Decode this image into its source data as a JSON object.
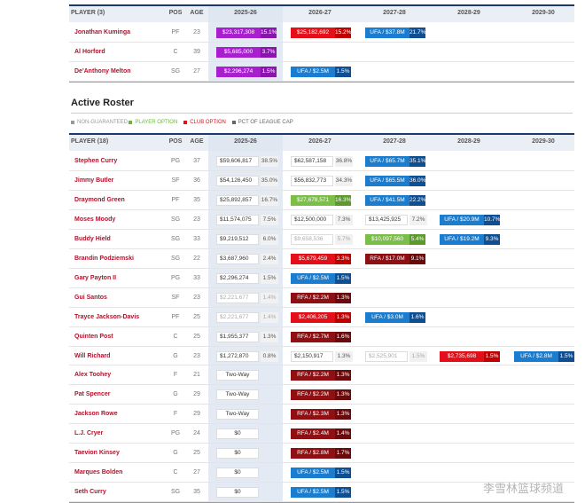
{
  "sections": [
    {
      "headers": [
        "PLAYER (3)",
        "POS",
        "AGE",
        "2025-26",
        "2026-27",
        "2027-28",
        "2028-29",
        "2029-30"
      ],
      "rows": [
        {
          "name": "Jonathan Kuminga",
          "pos": "PF",
          "age": "23",
          "cells": [
            {
              "text": "$23,317,308",
              "pct": "15.1%",
              "kind": "dead"
            },
            {
              "text": "$25,182,692",
              "pct": "15.2%",
              "kind": "club-option"
            },
            {
              "text": "UFA / $37.8M",
              "pct": "21.7%",
              "kind": "ufa"
            },
            null,
            null
          ]
        },
        {
          "name": "Al Horford",
          "pos": "C",
          "age": "39",
          "cells": [
            {
              "text": "$5,685,000",
              "pct": "3.7%",
              "kind": "dead"
            },
            null,
            null,
            null,
            null
          ]
        },
        {
          "name": "De'Anthony Melton",
          "pos": "SG",
          "age": "27",
          "cells": [
            {
              "text": "$2,296,274",
              "pct": "1.5%",
              "kind": "dead"
            },
            {
              "text": "UFA / $2.5M",
              "pct": "1.5%",
              "kind": "ufa"
            },
            null,
            null,
            null
          ]
        }
      ]
    },
    {
      "title": "Active Roster",
      "legend": [
        {
          "text": "NON-GUARANTEED",
          "color": "#999999"
        },
        {
          "text": "PLAYER OPTION",
          "color": "#6fb23f"
        },
        {
          "text": "CLUB OPTION",
          "color": "#e31019"
        },
        {
          "text": "PCT OF LEAGUE CAP",
          "color": "#666666"
        }
      ],
      "headers": [
        "PLAYER (18)",
        "POS",
        "AGE",
        "2025-26",
        "2026-27",
        "2027-28",
        "2028-29",
        "2029-30"
      ],
      "rows": [
        {
          "name": "Stephen Curry",
          "pos": "PG",
          "age": "37",
          "cells": [
            {
              "text": "$59,606,817",
              "pct": "38.5%",
              "kind": "guaranteed"
            },
            {
              "text": "$62,587,158",
              "pct": "36.8%",
              "kind": "guaranteed"
            },
            {
              "text": "UFA / $65.7M",
              "pct": "35.1%",
              "kind": "ufa"
            },
            null,
            null
          ]
        },
        {
          "name": "Jimmy Butler",
          "pos": "SF",
          "age": "36",
          "cells": [
            {
              "text": "$54,126,450",
              "pct": "35.0%",
              "kind": "guaranteed"
            },
            {
              "text": "$56,832,773",
              "pct": "34.3%",
              "kind": "guaranteed"
            },
            {
              "text": "UFA / $65.5M",
              "pct": "36.0%",
              "kind": "ufa"
            },
            null,
            null
          ]
        },
        {
          "name": "Draymond Green",
          "pos": "PF",
          "age": "35",
          "cells": [
            {
              "text": "$25,892,857",
              "pct": "16.7%",
              "kind": "guaranteed"
            },
            {
              "text": "$27,678,571",
              "pct": "16.3%",
              "kind": "player-option"
            },
            {
              "text": "UFA / $41.5M",
              "pct": "22.2%",
              "kind": "ufa"
            },
            null,
            null
          ]
        },
        {
          "name": "Moses Moody",
          "pos": "SG",
          "age": "23",
          "cells": [
            {
              "text": "$11,574,075",
              "pct": "7.5%",
              "kind": "guaranteed"
            },
            {
              "text": "$12,500,000",
              "pct": "7.3%",
              "kind": "guaranteed"
            },
            {
              "text": "$13,425,925",
              "pct": "7.2%",
              "kind": "guaranteed"
            },
            {
              "text": "UFA / $20.9M",
              "pct": "10.7%",
              "kind": "ufa"
            },
            null
          ]
        },
        {
          "name": "Buddy Hield",
          "pos": "SG",
          "age": "33",
          "cells": [
            {
              "text": "$9,219,512",
              "pct": "6.0%",
              "kind": "guaranteed"
            },
            {
              "text": "$9,658,536",
              "pct": "5.7%",
              "kind": "non-guaranteed"
            },
            {
              "text": "$10,097,560",
              "pct": "5.4%",
              "kind": "player-option"
            },
            {
              "text": "UFA / $19.2M",
              "pct": "9.3%",
              "kind": "ufa"
            },
            null
          ]
        },
        {
          "name": "Brandin Podziemski",
          "pos": "SG",
          "age": "22",
          "cells": [
            {
              "text": "$3,687,960",
              "pct": "2.4%",
              "kind": "guaranteed"
            },
            {
              "text": "$5,679,459",
              "pct": "3.3%",
              "kind": "club-option"
            },
            {
              "text": "RFA / $17.0M",
              "pct": "9.1%",
              "kind": "rfa"
            },
            null,
            null
          ]
        },
        {
          "name": "Gary Payton II",
          "pos": "PG",
          "age": "33",
          "cells": [
            {
              "text": "$2,296,274",
              "pct": "1.5%",
              "kind": "guaranteed"
            },
            {
              "text": "UFA / $2.5M",
              "pct": "1.5%",
              "kind": "ufa"
            },
            null,
            null,
            null
          ]
        },
        {
          "name": "Gui Santos",
          "pos": "SF",
          "age": "23",
          "cells": [
            {
              "text": "$2,221,677",
              "pct": "1.4%",
              "kind": "non-guaranteed"
            },
            {
              "text": "RFA / $2.2M",
              "pct": "1.3%",
              "kind": "rfa"
            },
            null,
            null,
            null
          ]
        },
        {
          "name": "Trayce Jackson-Davis",
          "pos": "PF",
          "age": "25",
          "cells": [
            {
              "text": "$2,221,677",
              "pct": "1.4%",
              "kind": "non-guaranteed"
            },
            {
              "text": "$2,406,205",
              "pct": "1.3%",
              "kind": "club-option"
            },
            {
              "text": "UFA / $3.0M",
              "pct": "1.6%",
              "kind": "ufa"
            },
            null,
            null
          ]
        },
        {
          "name": "Quinten Post",
          "pos": "C",
          "age": "25",
          "cells": [
            {
              "text": "$1,955,377",
              "pct": "1.3%",
              "kind": "guaranteed"
            },
            {
              "text": "RFA / $2.7M",
              "pct": "1.6%",
              "kind": "rfa"
            },
            null,
            null,
            null
          ]
        },
        {
          "name": "Will Richard",
          "pos": "G",
          "age": "23",
          "cells": [
            {
              "text": "$1,272,870",
              "pct": "0.8%",
              "kind": "guaranteed"
            },
            {
              "text": "$2,150,917",
              "pct": "1.3%",
              "kind": "guaranteed"
            },
            {
              "text": "$2,525,901",
              "pct": "1.5%",
              "kind": "non-guaranteed"
            },
            {
              "text": "$2,735,698",
              "pct": "1.5%",
              "kind": "club-option"
            },
            {
              "text": "UFA / $2.8M",
              "pct": "1.5%",
              "kind": "ufa"
            }
          ]
        },
        {
          "name": "Alex Toohey",
          "pos": "F",
          "age": "21",
          "cells": [
            {
              "text": "Two-Way",
              "kind": "guaranteed"
            },
            {
              "text": "RFA / $2.2M",
              "pct": "1.3%",
              "kind": "rfa"
            },
            null,
            null,
            null
          ]
        },
        {
          "name": "Pat Spencer",
          "pos": "G",
          "age": "29",
          "cells": [
            {
              "text": "Two-Way",
              "kind": "guaranteed"
            },
            {
              "text": "RFA / $2.2M",
              "pct": "1.3%",
              "kind": "rfa"
            },
            null,
            null,
            null
          ]
        },
        {
          "name": "Jackson Rowe",
          "pos": "F",
          "age": "29",
          "cells": [
            {
              "text": "Two-Way",
              "kind": "guaranteed"
            },
            {
              "text": "RFA / $2.3M",
              "pct": "1.3%",
              "kind": "rfa"
            },
            null,
            null,
            null
          ]
        },
        {
          "name": "L.J. Cryer",
          "pos": "PG",
          "age": "24",
          "cells": [
            {
              "text": "$0",
              "kind": "guaranteed"
            },
            {
              "text": "RFA / $2.4M",
              "pct": "1.4%",
              "kind": "rfa"
            },
            null,
            null,
            null
          ]
        },
        {
          "name": "Taevion Kinsey",
          "pos": "G",
          "age": "25",
          "cells": [
            {
              "text": "$0",
              "kind": "guaranteed"
            },
            {
              "text": "RFA / $2.8M",
              "pct": "1.7%",
              "kind": "rfa"
            },
            null,
            null,
            null
          ]
        },
        {
          "name": "Marques Bolden",
          "pos": "C",
          "age": "27",
          "cells": [
            {
              "text": "$0",
              "kind": "guaranteed"
            },
            {
              "text": "UFA / $2.5M",
              "pct": "1.5%",
              "kind": "ufa"
            },
            null,
            null,
            null
          ]
        },
        {
          "name": "Seth Curry",
          "pos": "SG",
          "age": "35",
          "cells": [
            {
              "text": "$0",
              "kind": "guaranteed"
            },
            {
              "text": "UFA / $2.5M",
              "pct": "1.5%",
              "kind": "ufa"
            },
            null,
            null,
            null
          ]
        }
      ]
    }
  ],
  "watermark": "李雪林篮球频道"
}
